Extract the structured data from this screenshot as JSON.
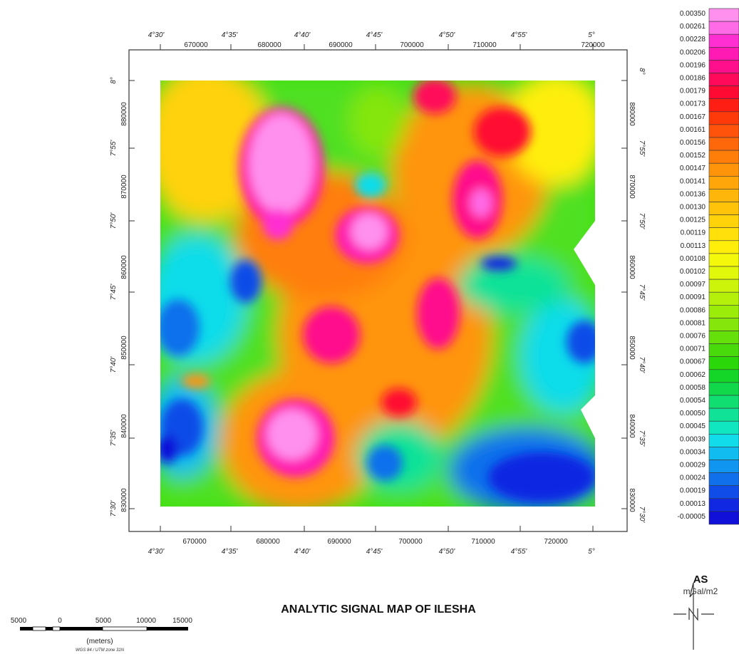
{
  "map": {
    "title": "ANALYTIC SIGNAL MAP OF ILESHA",
    "top_lon_labels": [
      "4°30'",
      "4°35'",
      "4°40'",
      "4°45'",
      "4°50'",
      "4°55'",
      "5°"
    ],
    "top_easting_labels": [
      "670000",
      "680000",
      "690000",
      "700000",
      "710000",
      "720000"
    ],
    "bottom_easting_labels": [
      "670000",
      "680000",
      "690000",
      "700000",
      "710000",
      "720000"
    ],
    "bottom_lon_labels": [
      "4°30'",
      "4°35'",
      "4°40'",
      "4°45'",
      "4°50'",
      "4°55'",
      "5°"
    ],
    "left_lat_labels": [
      "8°",
      "7°55'",
      "7°50'",
      "7°45'",
      "7°40'",
      "7°35'",
      "7°30'"
    ],
    "left_northing_labels": [
      "880000",
      "870000",
      "860000",
      "850000",
      "840000",
      "830000"
    ],
    "right_lat_labels": [
      "8°",
      "7°55'",
      "7°50'",
      "7°45'",
      "7°40'",
      "7°35'",
      "7°30'"
    ],
    "right_northing_labels": [
      "880000",
      "870000",
      "860000",
      "850000",
      "840000",
      "830000"
    ]
  },
  "legend": {
    "title": "AS",
    "unit": "mGal/m2",
    "values": [
      "0.00350",
      "0.00261",
      "0.00228",
      "0.00206",
      "0.00196",
      "0.00186",
      "0.00179",
      "0.00173",
      "0.00167",
      "0.00161",
      "0.00156",
      "0.00152",
      "0.00147",
      "0.00141",
      "0.00136",
      "0.00130",
      "0.00125",
      "0.00119",
      "0.00113",
      "0.00108",
      "0.00102",
      "0.00097",
      "0.00091",
      "0.00086",
      "0.00081",
      "0.00076",
      "0.00071",
      "0.00067",
      "0.00062",
      "0.00058",
      "0.00054",
      "0.00050",
      "0.00045",
      "0.00039",
      "0.00034",
      "0.00029",
      "0.00024",
      "0.00019",
      "0.00013",
      "-0.00005"
    ],
    "colors": [
      "#ff90ee",
      "#ff6ae6",
      "#ff2fd2",
      "#ff1ab4",
      "#ff0f8c",
      "#ff0a5a",
      "#ff0a32",
      "#ff1e14",
      "#ff3a0a",
      "#ff520a",
      "#ff680a",
      "#ff7e0a",
      "#ff940a",
      "#ffa60a",
      "#ffb60a",
      "#ffc40a",
      "#ffd20a",
      "#ffe00a",
      "#ffee0a",
      "#f4f80a",
      "#e2f80a",
      "#ccf40a",
      "#b4f00a",
      "#9cec0a",
      "#84e60a",
      "#66e00a",
      "#48da0a",
      "#2ad80a",
      "#14d628",
      "#10d84a",
      "#10de70",
      "#10e298",
      "#10e6c0",
      "#10dcea",
      "#10bcf0",
      "#1096f0",
      "#1070ec",
      "#104ce8",
      "#1028e2",
      "#1010d8"
    ]
  },
  "scale_bar": {
    "labels": [
      "5000",
      "0",
      "5000",
      "10000",
      "15000"
    ],
    "unit": "(meters)",
    "projection": "WGS 84 / UTM zone 31N"
  },
  "north_arrow": {
    "label": "N",
    "icon": "north-arrow-icon"
  },
  "colors": {
    "frame": "#333333",
    "background": "#ffffff"
  }
}
